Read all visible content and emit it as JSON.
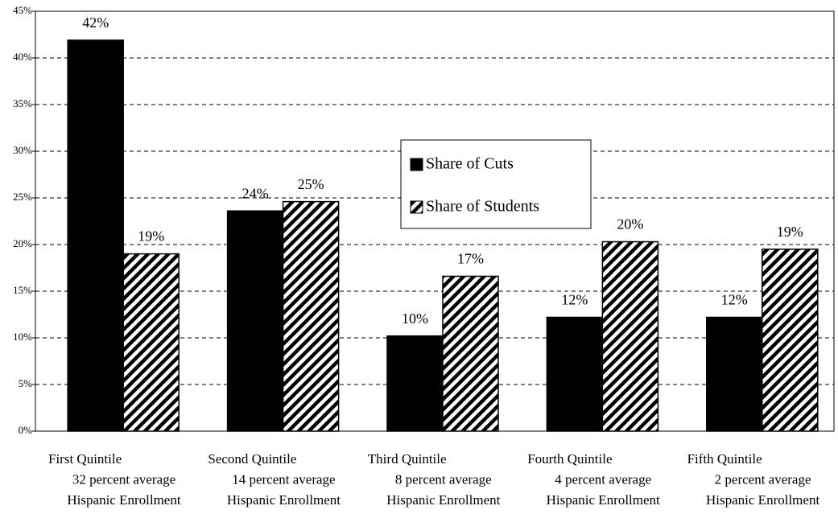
{
  "chart_data": {
    "type": "bar",
    "categories": [
      [
        "First Quintile",
        "32 percent average",
        "Hispanic Enrollment"
      ],
      [
        "Second Quintile",
        "14 percent average",
        "Hispanic Enrollment"
      ],
      [
        "Third Quintile",
        "8 percent average",
        "Hispanic Enrollment"
      ],
      [
        "Fourth Quintile",
        "4 percent average",
        "Hispanic Enrollment"
      ],
      [
        "Fifth Quintile",
        "2 percent average",
        "Hispanic Enrollment"
      ]
    ],
    "series": [
      {
        "name": "Share of Cuts",
        "color": "#000000",
        "pattern": "solid",
        "values": [
          41.9,
          23.6,
          10.2,
          12.2,
          12.2
        ],
        "value_labels": [
          "42%",
          "24%",
          "10%",
          "12%",
          "12%"
        ]
      },
      {
        "name": "Share of Students",
        "color": "#000000",
        "pattern": "hatch",
        "values": [
          19.0,
          24.6,
          16.6,
          20.3,
          19.5
        ],
        "value_labels": [
          "19%",
          "25%",
          "17%",
          "20%",
          "19%"
        ]
      }
    ],
    "ylim": [
      0,
      45
    ],
    "yticks": [
      {
        "value": 0,
        "label": "0%"
      },
      {
        "value": 5,
        "label": "5%"
      },
      {
        "value": 10,
        "label": "10%"
      },
      {
        "value": 15,
        "label": "15%"
      },
      {
        "value": 20,
        "label": "20%"
      },
      {
        "value": 25,
        "label": "25%"
      },
      {
        "value": 30,
        "label": "30%"
      },
      {
        "value": 35,
        "label": "35%"
      },
      {
        "value": 40,
        "label": "40%"
      },
      {
        "value": 45,
        "label": "45%"
      }
    ],
    "grid": true,
    "legend": "center"
  }
}
